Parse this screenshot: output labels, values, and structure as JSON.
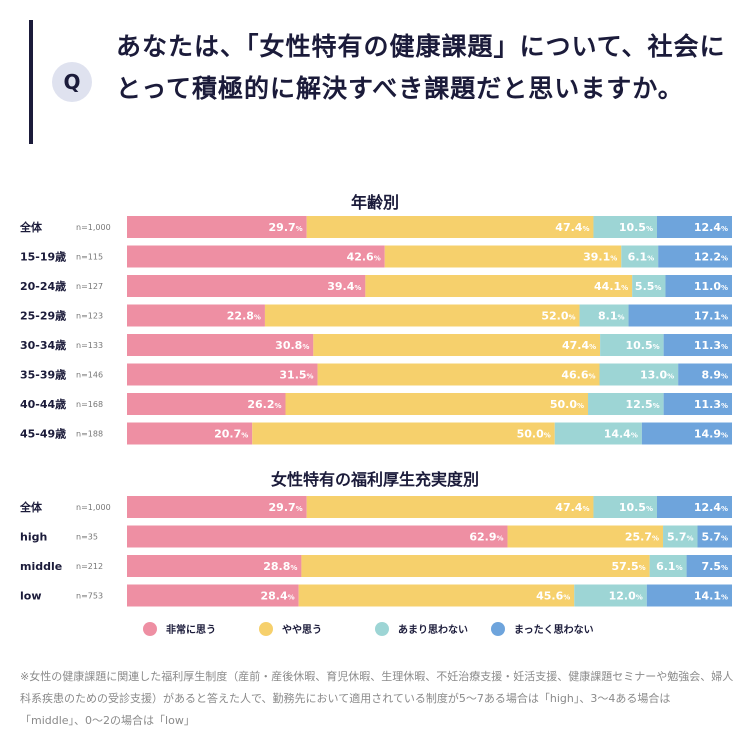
{
  "header": {
    "badge": "Q",
    "question": "あなたは、「女性特有の健康課題」について、社会にとって積極的に解決すべき課題だと思いますか。"
  },
  "colors": {
    "very": "#ee8fa3",
    "somewhat": "#f6d06c",
    "not_much": "#9dd5d5",
    "not_at_all": "#6ea4dc"
  },
  "legend": {
    "items": [
      "非常に思う",
      "やや思う",
      "あまり思わない",
      "まったく思わない"
    ]
  },
  "chart_data": [
    {
      "type": "bar",
      "stacked": true,
      "orientation": "horizontal",
      "title": "年齢別",
      "series_names": [
        "非常に思う",
        "やや思う",
        "あまり思わない",
        "まったく思わない"
      ],
      "categories": [
        "全体",
        "15-19歳",
        "20-24歳",
        "25-29歳",
        "30-34歳",
        "35-39歳",
        "40-44歳",
        "45-49歳"
      ],
      "n": [
        "n=1,000",
        "n=115",
        "n=127",
        "n=123",
        "n=133",
        "n=146",
        "n=168",
        "n=188"
      ],
      "values": [
        [
          29.7,
          47.4,
          10.5,
          12.4
        ],
        [
          42.6,
          39.1,
          6.1,
          12.2
        ],
        [
          39.4,
          44.1,
          5.5,
          11.0
        ],
        [
          22.8,
          52.0,
          8.1,
          17.1
        ],
        [
          30.8,
          47.4,
          10.5,
          11.3
        ],
        [
          31.5,
          46.6,
          13.0,
          8.9
        ],
        [
          26.2,
          50.0,
          12.5,
          11.3
        ],
        [
          20.7,
          50.0,
          14.4,
          14.9
        ]
      ],
      "unit": "%"
    },
    {
      "type": "bar",
      "stacked": true,
      "orientation": "horizontal",
      "title": "女性特有の福利厚生充実度別",
      "series_names": [
        "非常に思う",
        "やや思う",
        "あまり思わない",
        "まったく思わない"
      ],
      "categories": [
        "全体",
        "high",
        "middle",
        "low"
      ],
      "n": [
        "n=1,000",
        "n=35",
        "n=212",
        "n=753"
      ],
      "values": [
        [
          29.7,
          47.4,
          10.5,
          12.4
        ],
        [
          62.9,
          25.7,
          5.7,
          5.7
        ],
        [
          28.8,
          57.5,
          6.1,
          7.5
        ],
        [
          28.4,
          45.6,
          12.0,
          14.1
        ]
      ],
      "unit": "%"
    }
  ],
  "footnote": "※女性の健康課題に関連した福利厚生制度（産前・産後休暇、育児休暇、生理休暇、不妊治療支援・妊活支援、健康課題セミナーや勉強会、婦人科系疾患のための受診支援）があると答えた人で、勤務先において適用されている制度が5〜7ある場合は「high」、3〜4ある場合は「middle」、0〜2の場合は「low」"
}
